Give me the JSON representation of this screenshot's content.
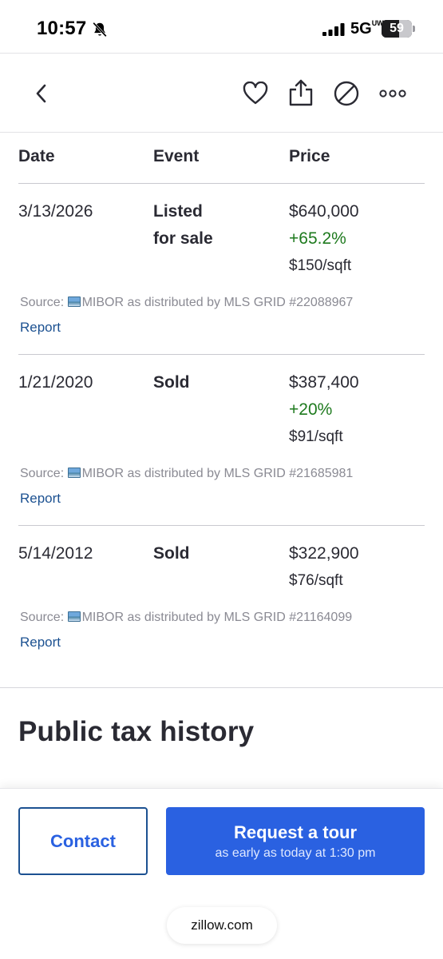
{
  "status_bar": {
    "time": "10:57",
    "network": "5G",
    "network_suffix": "UW",
    "battery": "59",
    "battery_level": 0.59
  },
  "nav": {
    "icons": [
      "chevron-left-icon",
      "heart-icon",
      "share-icon",
      "hide-icon",
      "more-icon"
    ]
  },
  "table": {
    "headers": {
      "date": "Date",
      "event": "Event",
      "price": "Price"
    },
    "rows": [
      {
        "date": "3/13/2026",
        "event_line1": "Listed",
        "event_line2": "for sale",
        "price": "$640,000",
        "change": "+65.2%",
        "per_sqft": "$150/sqft",
        "source": "Source: ",
        "source_name": "MIBOR as distributed by MLS GRID #22088967",
        "report": "Report"
      },
      {
        "date": "1/21/2020",
        "event_line1": "Sold",
        "event_line2": "",
        "price": "$387,400",
        "change": "+20%",
        "per_sqft": "$91/sqft",
        "source": "Source: ",
        "source_name": "MIBOR as distributed by MLS GRID #21685981",
        "report": "Report"
      },
      {
        "date": "5/14/2012",
        "event_line1": "Sold",
        "event_line2": "",
        "price": "$322,900",
        "change": "",
        "per_sqft": "$76/sqft",
        "source": "Source: ",
        "source_name": "MIBOR as distributed by MLS GRID #21164099",
        "report": "Report"
      }
    ]
  },
  "section": {
    "title": "Public tax history"
  },
  "actions": {
    "contact": "Contact",
    "tour_title": "Request a tour",
    "tour_subtitle": "as early as today at 1:30 pm"
  },
  "browser": {
    "url": "zillow.com"
  },
  "colors": {
    "accent": "#2a61e1",
    "link": "#1c5191",
    "positive": "#1e7a1e",
    "text": "#2a2a33",
    "muted": "#8a8a93"
  }
}
